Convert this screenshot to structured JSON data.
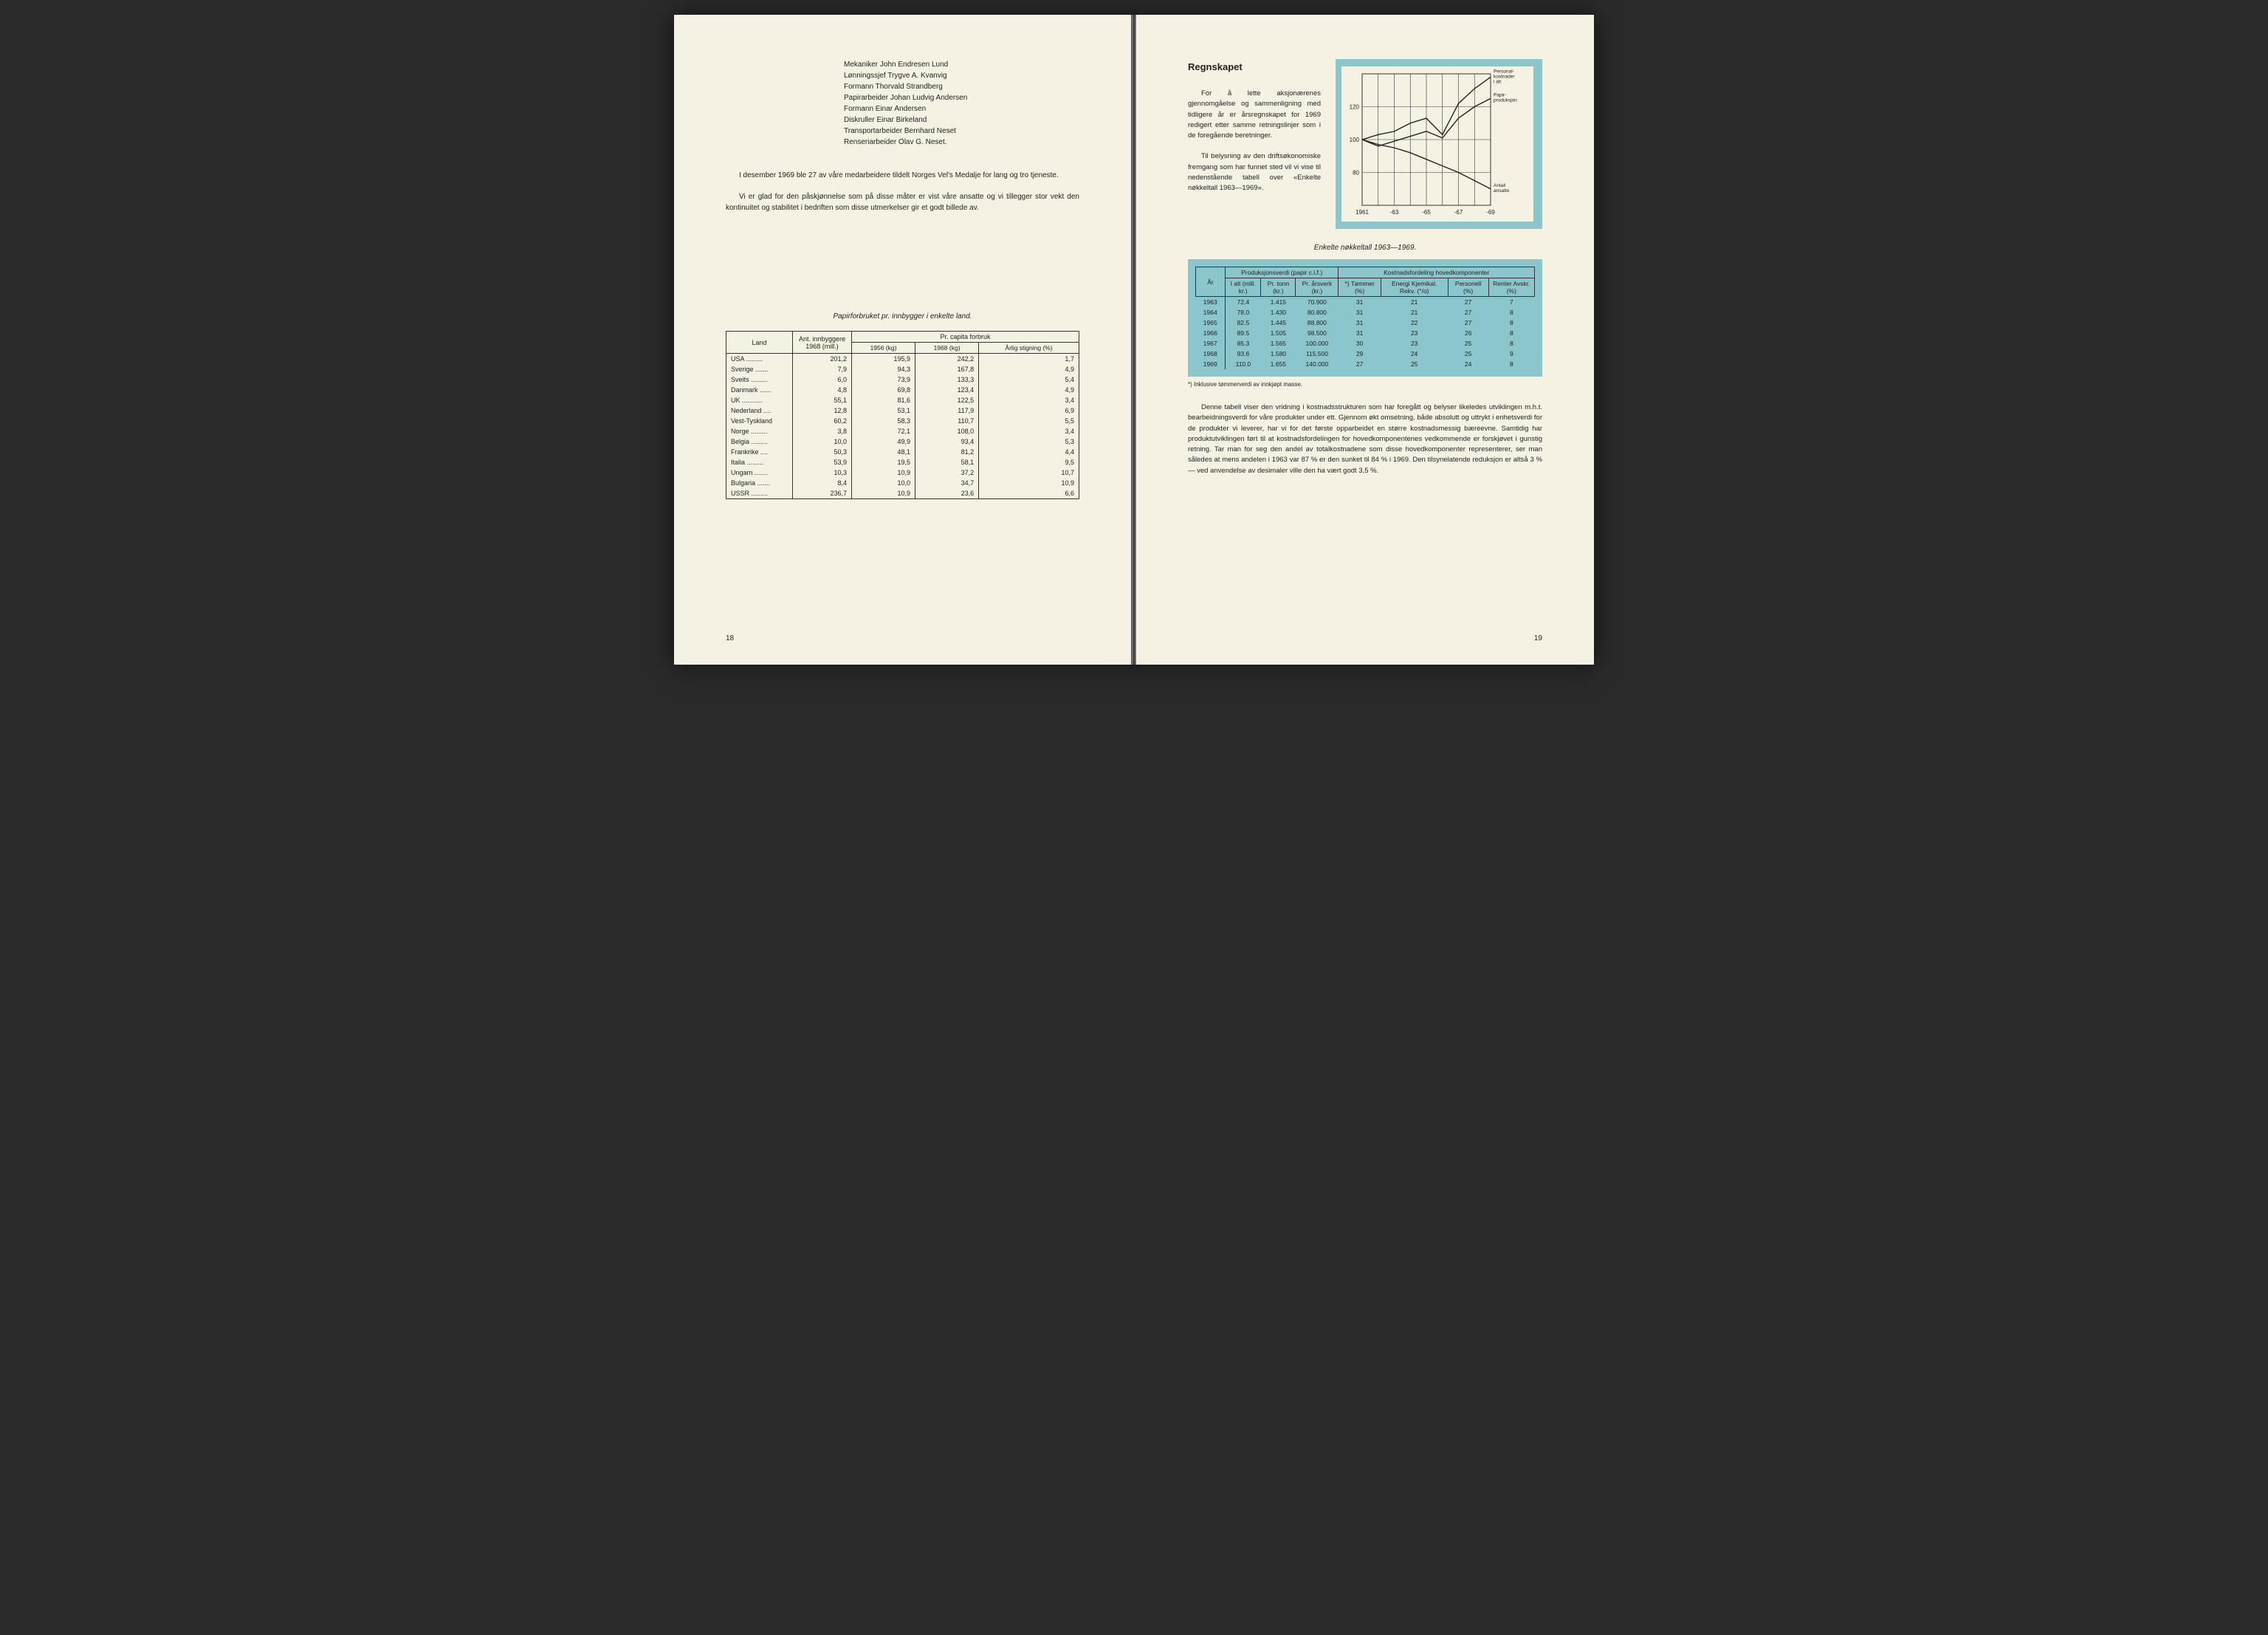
{
  "left": {
    "names": [
      "Mekaniker John Endresen Lund",
      "Lønningssjef Trygve A. Kvanvig",
      "Formann Thorvald Strandberg",
      "Papirarbeider Johan Ludvig Andersen",
      "Formann Einar Andersen",
      "Diskruller Einar Birkeland",
      "Transportarbeider Bernhard Neset",
      "Renseriarbeider Olav G. Neset."
    ],
    "para1": "I desember 1969 ble 27 av våre medarbeidere tildelt Norges Vel's Medalje for lang og tro tjeneste.",
    "para2": "Vi er glad for den påskjønnelse som på disse måter er vist våre ansatte og vi tillegger stor vekt den kontinuitet og stabilitet i bedriften som disse utmerkelser gir et godt billede av.",
    "table_title": "Papirforbruket pr. innbygger i enkelte land.",
    "headers": {
      "land": "Land",
      "innbyggere": "Ant. innbyggere 1968 (mill.)",
      "forbruk": "Pr. capita forbruk",
      "c1956": "1956 (kg)",
      "c1968": "1968 (kg)",
      "stigning": "Årlig stigning (%)"
    },
    "rows": [
      {
        "land": "USA",
        "dots": ".........",
        "pop": "201,2",
        "c56": "195,9",
        "c68": "242,2",
        "stig": "1,7"
      },
      {
        "land": "Sverige",
        "dots": ".......",
        "pop": "7,9",
        "c56": "94,3",
        "c68": "167,8",
        "stig": "4,9"
      },
      {
        "land": "Sveits",
        "dots": ".........",
        "pop": "6,0",
        "c56": "73,9",
        "c68": "133,3",
        "stig": "5,4"
      },
      {
        "land": "Danmark",
        "dots": "......",
        "pop": "4,8",
        "c56": "69,8",
        "c68": "123,4",
        "stig": "4,9"
      },
      {
        "land": "UK",
        "dots": "...........",
        "pop": "55,1",
        "c56": "81,6",
        "c68": "122,5",
        "stig": "3,4"
      },
      {
        "land": "Nederland",
        "dots": "....",
        "pop": "12,8",
        "c56": "53,1",
        "c68": "117,9",
        "stig": "6,9"
      },
      {
        "land": "Vest-Tyskland",
        "dots": "",
        "pop": "60,2",
        "c56": "58,3",
        "c68": "110,7",
        "stig": "5,5"
      },
      {
        "land": "Norge",
        "dots": ".........",
        "pop": "3,8",
        "c56": "72,1",
        "c68": "108,0",
        "stig": "3,4"
      },
      {
        "land": "Belgia",
        "dots": ".........",
        "pop": "10,0",
        "c56": "49,9",
        "c68": "93,4",
        "stig": "5,3"
      },
      {
        "land": "Frankrike",
        "dots": "....",
        "pop": "50,3",
        "c56": "48,1",
        "c68": "81,2",
        "stig": "4,4"
      },
      {
        "land": "Italia",
        "dots": ".........",
        "pop": "53,9",
        "c56": "19,5",
        "c68": "58,1",
        "stig": "9,5"
      },
      {
        "land": "Ungarn",
        "dots": ".......",
        "pop": "10,3",
        "c56": "10,9",
        "c68": "37,2",
        "stig": "10,7"
      },
      {
        "land": "Bulgaria",
        "dots": ".......",
        "pop": "8,4",
        "c56": "10,0",
        "c68": "34,7",
        "stig": "10,9"
      },
      {
        "land": "USSR",
        "dots": ".........",
        "pop": "236,7",
        "c56": "10,9",
        "c68": "23,6",
        "stig": "6,6"
      }
    ],
    "pagenum": "18"
  },
  "right": {
    "title": "Regnskapet",
    "para1": "For å lette aksjonærenes gjennomgåelse og sammenligning med tidligere år er årsregnskapet for 1969 redigert etter samme retningslinjer som i de foregående beretninger.",
    "para2": "Til belysning av den driftsøkonomiske fremgang som har funnet sted vil vi vise til nedenstående tabell over «Enkelte nøkkeltall 1963—1969».",
    "chart": {
      "type": "line",
      "background_wrap": "#8bc6cc",
      "plot_bg": "#f5f1e3",
      "grid_color": "#333333",
      "line_color": "#222222",
      "line_width": 1.4,
      "xlabels": [
        "1961",
        "-63",
        "-65",
        "-67",
        "-69"
      ],
      "yticks": [
        80,
        100,
        120
      ],
      "ylim": [
        60,
        140
      ],
      "x_positions": [
        0,
        1,
        2,
        3,
        4,
        5,
        6,
        7,
        8
      ],
      "series": [
        {
          "name": "Personal-kostnader i alt",
          "label": "Personal-\nkostnader\ni alt",
          "y": [
            100,
            103,
            105,
            110,
            113,
            103,
            122,
            131,
            138
          ]
        },
        {
          "name": "Papir-produksjon",
          "label": "Papir-\nproduksjon",
          "y": [
            100,
            96,
            99,
            102,
            105,
            101,
            113,
            120,
            125
          ]
        },
        {
          "name": "Antall ansatte",
          "label": "Antall\nansatte",
          "y": [
            100,
            97,
            95,
            92,
            88,
            84,
            80,
            75,
            70
          ]
        }
      ]
    },
    "table_title": "Enkelte nøkkeltall 1963—1969.",
    "headers": {
      "ar": "År",
      "prod": "Produksjonsverdi (papir c.i.f.)",
      "kost": "Kostnadsfordeling hovedkomponenter",
      "ialt": "I alt (mill. kr.)",
      "prtonn": "Pr. tonn (kr.)",
      "prarsverk": "Pr. årsverk (kr.)",
      "tommer": "*) Tømmer (%)",
      "energi": "Energi Kjemikal. Rekv. (°/o)",
      "personell": "Personell (%)",
      "renter": "Renter Avskr. (%)"
    },
    "rows": [
      {
        "ar": "1963",
        "ialt": "72.4",
        "tonn": "1.415",
        "arsv": "70.900",
        "tom": "31",
        "ene": "21",
        "per": "27",
        "ren": "7"
      },
      {
        "ar": "1964",
        "ialt": "78.0",
        "tonn": "1.430",
        "arsv": "80.800",
        "tom": "31",
        "ene": "21",
        "per": "27",
        "ren": "8"
      },
      {
        "ar": "1965",
        "ialt": "82.5",
        "tonn": "1.445",
        "arsv": "88.800",
        "tom": "31",
        "ene": "22",
        "per": "27",
        "ren": "8"
      },
      {
        "ar": "1966",
        "ialt": "89.5",
        "tonn": "1.505",
        "arsv": "98.500",
        "tom": "31",
        "ene": "23",
        "per": "26",
        "ren": "8"
      },
      {
        "ar": "1967",
        "ialt": "85.3",
        "tonn": "1.565",
        "arsv": "100.000",
        "tom": "30",
        "ene": "23",
        "per": "25",
        "ren": "8"
      },
      {
        "ar": "1968",
        "ialt": "93.6",
        "tonn": "1.580",
        "arsv": "115.500",
        "tom": "29",
        "ene": "24",
        "per": "25",
        "ren": "9"
      },
      {
        "ar": "1969",
        "ialt": "110.0",
        "tonn": "1.655",
        "arsv": "140.000",
        "tom": "27",
        "ene": "25",
        "per": "24",
        "ren": "8"
      }
    ],
    "footnote": "*) Inklusive tømmerverdi av innkjøpt masse.",
    "para3": "Denne tabell viser den vridning i kostnadsstrukturen som har foregått og belyser likeledes utviklingen m.h.t. bearbeidningsverdi for våre produkter under ett. Gjennom økt omsetning, både absolutt og uttrykt i enhetsverdi for de produkter vi leverer, har vi for det første opparbeidet en større kostnadsmessig bæreevne. Samtidig har produktutviklingen ført til at kostnadsfordelingen for hovedkomponentenes vedkommende er forskjøvet i gunstig retning. Tar man for seg den andel av totalkostnadene som disse hovedkomponenter representerer, ser man således at mens andelen i 1963 var 87 % er den sunket til 84 % i 1969. Den tilsynelatende reduksjon er altså 3 % — ved anvendelse av desimaler ville den ha vært godt 3,5 %.",
    "pagenum": "19"
  }
}
